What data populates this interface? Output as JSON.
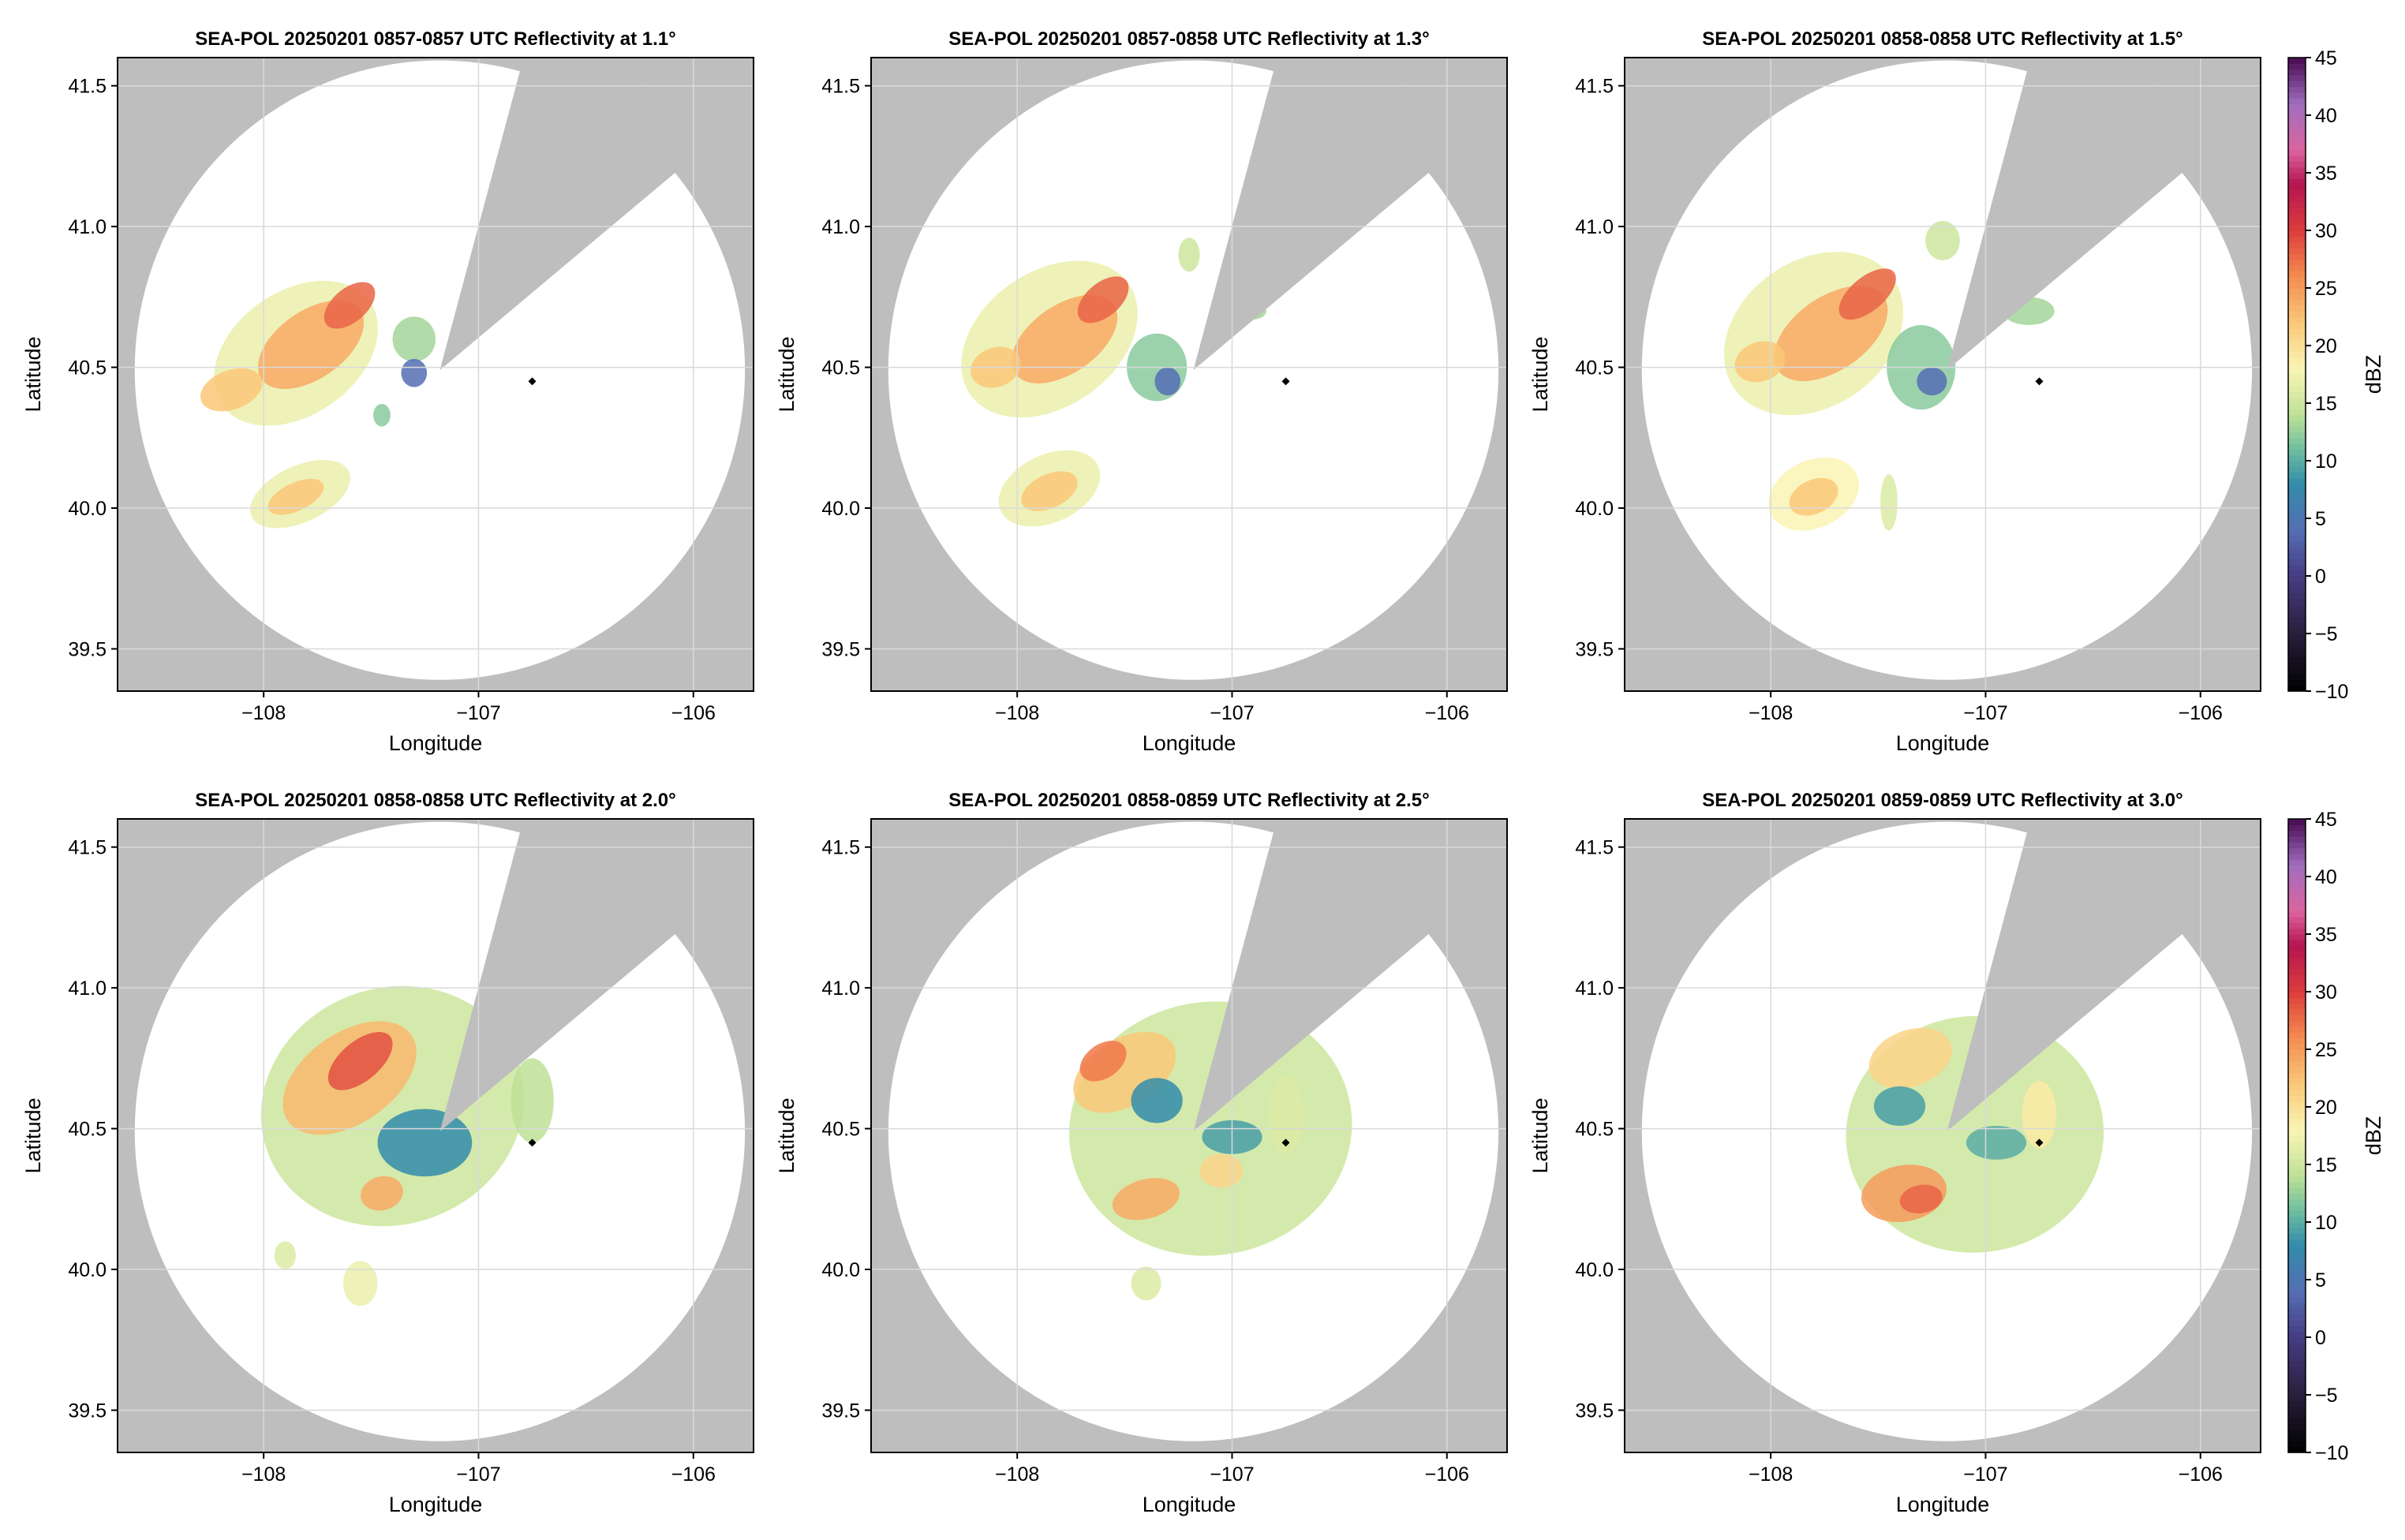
{
  "figure": {
    "panels": [
      {
        "title": "SEA-POL 20250201 0857-0857 UTC Reflectivity at 1.1°",
        "xlabel": "Longitude",
        "ylabel": "Latitude",
        "colorbar": false,
        "echoes": [
          {
            "lon": -107.85,
            "lat": 40.55,
            "rlon": 0.42,
            "rlat": 0.22,
            "rot": -35,
            "dbz": 17
          },
          {
            "lon": -107.78,
            "lat": 40.58,
            "rlon": 0.28,
            "rlat": 0.12,
            "rot": -35,
            "dbz": 24
          },
          {
            "lon": -107.6,
            "lat": 40.72,
            "rlon": 0.14,
            "rlat": 0.06,
            "rot": -40,
            "dbz": 28
          },
          {
            "lon": -108.15,
            "lat": 40.42,
            "rlon": 0.15,
            "rlat": 0.07,
            "rot": -20,
            "dbz": 22
          },
          {
            "lon": -107.3,
            "lat": 40.6,
            "rlon": 0.1,
            "rlat": 0.08,
            "rot": 0,
            "dbz": 13
          },
          {
            "lon": -107.3,
            "lat": 40.48,
            "rlon": 0.06,
            "rlat": 0.05,
            "rot": 0,
            "dbz": 4
          },
          {
            "lon": -107.83,
            "lat": 40.05,
            "rlon": 0.25,
            "rlat": 0.1,
            "rot": -25,
            "dbz": 17
          },
          {
            "lon": -107.85,
            "lat": 40.04,
            "rlon": 0.14,
            "rlat": 0.05,
            "rot": -25,
            "dbz": 22
          },
          {
            "lon": -107.45,
            "lat": 40.33,
            "rlon": 0.04,
            "rlat": 0.04,
            "rot": 0,
            "dbz": 12
          }
        ]
      },
      {
        "title": "SEA-POL 20250201 0857-0858 UTC Reflectivity at 1.3°",
        "xlabel": "Longitude",
        "ylabel": "Latitude",
        "colorbar": false,
        "echoes": [
          {
            "lon": -107.85,
            "lat": 40.6,
            "rlon": 0.45,
            "rlat": 0.24,
            "rot": -35,
            "dbz": 17
          },
          {
            "lon": -107.78,
            "lat": 40.6,
            "rlon": 0.28,
            "rlat": 0.12,
            "rot": -35,
            "dbz": 24
          },
          {
            "lon": -107.6,
            "lat": 40.74,
            "rlon": 0.14,
            "rlat": 0.06,
            "rot": -40,
            "dbz": 28
          },
          {
            "lon": -108.1,
            "lat": 40.5,
            "rlon": 0.12,
            "rlat": 0.07,
            "rot": -20,
            "dbz": 22
          },
          {
            "lon": -107.35,
            "lat": 40.5,
            "rlon": 0.14,
            "rlat": 0.12,
            "rot": 0,
            "dbz": 12
          },
          {
            "lon": -107.3,
            "lat": 40.45,
            "rlon": 0.06,
            "rlat": 0.05,
            "rot": 0,
            "dbz": 4
          },
          {
            "lon": -107.85,
            "lat": 40.07,
            "rlon": 0.25,
            "rlat": 0.12,
            "rot": -25,
            "dbz": 17
          },
          {
            "lon": -107.85,
            "lat": 40.06,
            "rlon": 0.14,
            "rlat": 0.06,
            "rot": -25,
            "dbz": 22
          },
          {
            "lon": -107.2,
            "lat": 40.9,
            "rlon": 0.05,
            "rlat": 0.06,
            "rot": 0,
            "dbz": 15
          },
          {
            "lon": -106.9,
            "lat": 40.7,
            "rlon": 0.06,
            "rlat": 0.03,
            "rot": 0,
            "dbz": 13
          }
        ]
      },
      {
        "title": "SEA-POL 20250201 0858-0858 UTC Reflectivity at 1.5°",
        "xlabel": "Longitude",
        "ylabel": "Latitude",
        "colorbar": true,
        "echoes": [
          {
            "lon": -107.8,
            "lat": 40.62,
            "rlon": 0.45,
            "rlat": 0.26,
            "rot": -35,
            "dbz": 17
          },
          {
            "lon": -107.72,
            "lat": 40.62,
            "rlon": 0.3,
            "rlat": 0.13,
            "rot": -35,
            "dbz": 24
          },
          {
            "lon": -107.55,
            "lat": 40.76,
            "rlon": 0.16,
            "rlat": 0.06,
            "rot": -40,
            "dbz": 28
          },
          {
            "lon": -108.05,
            "lat": 40.52,
            "rlon": 0.12,
            "rlat": 0.07,
            "rot": -20,
            "dbz": 22
          },
          {
            "lon": -107.3,
            "lat": 40.5,
            "rlon": 0.16,
            "rlat": 0.15,
            "rot": 0,
            "dbz": 12
          },
          {
            "lon": -107.25,
            "lat": 40.45,
            "rlon": 0.07,
            "rlat": 0.05,
            "rot": 0,
            "dbz": 4
          },
          {
            "lon": -107.8,
            "lat": 40.05,
            "rlon": 0.22,
            "rlat": 0.12,
            "rot": -25,
            "dbz": 18
          },
          {
            "lon": -107.8,
            "lat": 40.04,
            "rlon": 0.12,
            "rlat": 0.06,
            "rot": -25,
            "dbz": 22
          },
          {
            "lon": -106.8,
            "lat": 40.7,
            "rlon": 0.12,
            "rlat": 0.05,
            "rot": 0,
            "dbz": 13
          },
          {
            "lon": -107.2,
            "lat": 40.95,
            "rlon": 0.08,
            "rlat": 0.07,
            "rot": 0,
            "dbz": 15
          },
          {
            "lon": -107.45,
            "lat": 40.02,
            "rlon": 0.04,
            "rlat": 0.1,
            "rot": 0,
            "dbz": 16
          }
        ]
      },
      {
        "title": "SEA-POL 20250201 0858-0858 UTC Reflectivity at 2.0°",
        "xlabel": "Longitude",
        "ylabel": "Latitude",
        "colorbar": false,
        "echoes": [
          {
            "lon": -107.4,
            "lat": 40.58,
            "rlon": 0.62,
            "rlat": 0.42,
            "rot": -20,
            "dbz": 15
          },
          {
            "lon": -107.6,
            "lat": 40.68,
            "rlon": 0.35,
            "rlat": 0.16,
            "rot": -35,
            "dbz": 23
          },
          {
            "lon": -107.55,
            "lat": 40.74,
            "rlon": 0.18,
            "rlat": 0.07,
            "rot": -40,
            "dbz": 29
          },
          {
            "lon": -107.25,
            "lat": 40.45,
            "rlon": 0.22,
            "rlat": 0.12,
            "rot": 0,
            "dbz": 8
          },
          {
            "lon": -107.45,
            "lat": 40.27,
            "rlon": 0.1,
            "rlat": 0.06,
            "rot": -15,
            "dbz": 24
          },
          {
            "lon": -106.75,
            "lat": 40.6,
            "rlon": 0.1,
            "rlat": 0.15,
            "rot": 0,
            "dbz": 14
          },
          {
            "lon": -107.55,
            "lat": 39.95,
            "rlon": 0.08,
            "rlat": 0.08,
            "rot": 0,
            "dbz": 17
          },
          {
            "lon": -107.9,
            "lat": 40.05,
            "rlon": 0.05,
            "rlat": 0.05,
            "rot": 0,
            "dbz": 16
          }
        ]
      },
      {
        "title": "SEA-POL 20250201 0858-0859 UTC Reflectivity at 2.5°",
        "xlabel": "Longitude",
        "ylabel": "Latitude",
        "colorbar": false,
        "echoes": [
          {
            "lon": -107.1,
            "lat": 40.5,
            "rlon": 0.66,
            "rlat": 0.45,
            "rot": -10,
            "dbz": 15
          },
          {
            "lon": -107.5,
            "lat": 40.7,
            "rlon": 0.26,
            "rlat": 0.12,
            "rot": -30,
            "dbz": 22
          },
          {
            "lon": -107.6,
            "lat": 40.74,
            "rlon": 0.12,
            "rlat": 0.06,
            "rot": -35,
            "dbz": 27
          },
          {
            "lon": -107.35,
            "lat": 40.6,
            "rlon": 0.12,
            "rlat": 0.08,
            "rot": 0,
            "dbz": 8
          },
          {
            "lon": -107.4,
            "lat": 40.25,
            "rlon": 0.16,
            "rlat": 0.07,
            "rot": -15,
            "dbz": 24
          },
          {
            "lon": -107.05,
            "lat": 40.35,
            "rlon": 0.1,
            "rlat": 0.06,
            "rot": 0,
            "dbz": 21
          },
          {
            "lon": -107.0,
            "lat": 40.47,
            "rlon": 0.14,
            "rlat": 0.06,
            "rot": 0,
            "dbz": 9
          },
          {
            "lon": -106.75,
            "lat": 40.55,
            "rlon": 0.08,
            "rlat": 0.14,
            "rot": 0,
            "dbz": 16
          },
          {
            "lon": -107.4,
            "lat": 39.95,
            "rlon": 0.07,
            "rlat": 0.06,
            "rot": 0,
            "dbz": 16
          }
        ]
      },
      {
        "title": "SEA-POL 20250201 0859-0859 UTC Reflectivity at 3.0°",
        "xlabel": "Longitude",
        "ylabel": "Latitude",
        "colorbar": true,
        "echoes": [
          {
            "lon": -107.05,
            "lat": 40.48,
            "rlon": 0.6,
            "rlat": 0.42,
            "rot": -5,
            "dbz": 15
          },
          {
            "lon": -107.35,
            "lat": 40.75,
            "rlon": 0.2,
            "rlat": 0.1,
            "rot": -20,
            "dbz": 21
          },
          {
            "lon": -107.4,
            "lat": 40.58,
            "rlon": 0.12,
            "rlat": 0.07,
            "rot": 0,
            "dbz": 9
          },
          {
            "lon": -107.38,
            "lat": 40.27,
            "rlon": 0.2,
            "rlat": 0.1,
            "rot": -10,
            "dbz": 25
          },
          {
            "lon": -107.3,
            "lat": 40.25,
            "rlon": 0.1,
            "rlat": 0.05,
            "rot": -10,
            "dbz": 28
          },
          {
            "lon": -106.95,
            "lat": 40.45,
            "rlon": 0.14,
            "rlat": 0.06,
            "rot": 0,
            "dbz": 10
          },
          {
            "lon": -106.75,
            "lat": 40.55,
            "rlon": 0.08,
            "rlat": 0.12,
            "rot": 0,
            "dbz": 19
          }
        ]
      }
    ],
    "xticks": [
      -108,
      -107,
      -106
    ],
    "xtick_labels": [
      "−108",
      "−107",
      "−106"
    ],
    "yticks": [
      39.5,
      40.0,
      40.5,
      41.0,
      41.5
    ],
    "ytick_labels": [
      "39.5",
      "40.0",
      "40.5",
      "41.0",
      "41.5"
    ],
    "xlim": [
      -108.68,
      -105.72
    ],
    "ylim": [
      39.35,
      41.6
    ],
    "radar": {
      "lon": -107.18,
      "lat": 40.49,
      "range_lon": 1.42,
      "range_lat": 1.1
    },
    "blocked_sector_deg": [
      15,
      50
    ],
    "marker": {
      "lon": -106.75,
      "lat": 40.45
    },
    "colors": {
      "background": "#bebebe",
      "coverage": "#ffffff",
      "marker": "#000000",
      "grid": "#d9d9d9"
    },
    "colorbar": {
      "label": "dBZ",
      "range": [
        -10,
        45
      ],
      "ticks": [
        -10,
        -5,
        0,
        5,
        10,
        15,
        20,
        25,
        30,
        35,
        40,
        45
      ],
      "tick_labels": [
        "−10",
        "−5",
        "0",
        "5",
        "10",
        "15",
        "20",
        "25",
        "30",
        "35",
        "40",
        "45"
      ],
      "colormap": "Spectral_r with dark purple extension"
    }
  }
}
